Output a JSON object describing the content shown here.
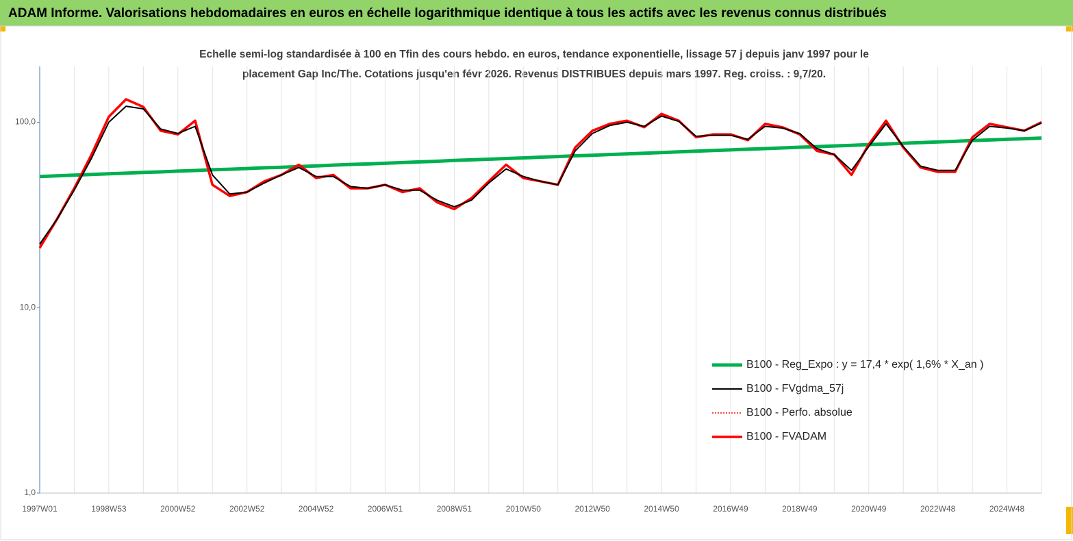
{
  "chart_data": {
    "type": "line",
    "title": "ADAM Informe. Valorisations hebdomadaires en euros en échelle logarithmique identique à tous les actifs avec les revenus connus distribués",
    "subtitle": [
      "Echelle semi-log standardisée à 100 en Tfin des cours hebdo. en euros, tendance exponentielle, lissage 57 j depuis janv 1997 pour le",
      "placement Gap Inc/The. Cotations jusqu'en févr 2026. Revenus DISTRIBUES depuis mars 1997. Reg. croiss. : 9,7/20."
    ],
    "log_scale": true,
    "legend": "lower right",
    "ylim": [
      1,
      200
    ],
    "yticks": [
      {
        "value": 1,
        "label": "1,0"
      },
      {
        "value": 10,
        "label": "10,0"
      },
      {
        "value": 100,
        "label": "100,0"
      }
    ],
    "categories": [
      "1997W01",
      null,
      null,
      null,
      "1998W53",
      null,
      null,
      null,
      "2000W52",
      null,
      null,
      null,
      "2002W52",
      null,
      null,
      null,
      "2004W52",
      null,
      null,
      null,
      "2006W51",
      null,
      null,
      null,
      "2008W51",
      null,
      null,
      null,
      "2010W50",
      null,
      null,
      null,
      "2012W50",
      null,
      null,
      null,
      "2014W50",
      null,
      null,
      null,
      "2016W49",
      null,
      null,
      null,
      "2018W49",
      null,
      null,
      null,
      "2020W49",
      null,
      null,
      null,
      "2022W48",
      null,
      null,
      null,
      "2024W48",
      null,
      null
    ],
    "series": [
      {
        "name": "B100 - Reg_Expo : y = 17,4 *  exp( 1,6% *  X_an )",
        "color": "#00b050",
        "line_style": "solid",
        "values": [
          51.0,
          51.4,
          51.8,
          52.3,
          52.7,
          53.1,
          53.6,
          54.0,
          54.5,
          54.9,
          55.4,
          55.8,
          56.3,
          56.8,
          57.2,
          57.7,
          58.2,
          58.7,
          59.2,
          59.6,
          60.1,
          60.6,
          61.1,
          61.6,
          62.2,
          62.7,
          63.2,
          63.7,
          64.2,
          64.8,
          65.3,
          65.9,
          66.4,
          67.0,
          67.5,
          68.1,
          68.6,
          69.2,
          69.8,
          70.4,
          70.9,
          71.5,
          72.1,
          72.7,
          73.3,
          73.9,
          74.5,
          75.1,
          75.8,
          76.4,
          77.0,
          77.6,
          78.3,
          78.9,
          79.6,
          80.2,
          80.9,
          81.5,
          82.2
        ]
      },
      {
        "name": "B100 - FVgdma_57j",
        "color": "#000000",
        "line_style": "solid",
        "values": [
          22,
          30,
          43,
          64,
          100,
          122,
          118,
          92,
          87,
          95,
          52,
          41,
          42,
          47,
          52,
          57,
          51,
          51,
          45,
          44,
          46,
          43,
          43,
          38,
          35,
          38,
          47,
          56,
          51,
          48,
          46,
          70,
          87,
          96,
          100,
          95,
          108,
          101,
          84,
          85,
          85,
          81,
          95,
          93,
          87,
          72,
          67,
          55,
          74,
          98,
          74,
          58,
          55,
          55,
          80,
          95,
          93,
          90,
          99
        ]
      },
      {
        "name": "B100 - Perfo. absolue",
        "color": "#ff0000",
        "line_style": "dotted",
        "values": [
          21,
          30,
          44,
          67,
          107,
          133,
          121,
          90,
          86,
          102,
          46,
          40,
          42,
          48,
          52,
          59,
          50,
          52,
          44,
          44,
          46,
          42,
          44,
          37,
          34,
          39,
          48,
          59,
          50,
          48,
          46,
          73,
          90,
          98,
          102,
          94,
          111,
          102,
          83,
          86,
          86,
          80,
          98,
          94,
          86,
          70,
          67,
          52,
          76,
          102,
          73,
          57,
          54,
          54,
          83,
          98,
          94,
          90,
          100
        ]
      },
      {
        "name": "B100 - FVADAM",
        "color": "#ff0000",
        "line_style": "solid",
        "values": [
          21,
          30,
          44,
          67,
          107,
          133,
          121,
          90,
          86,
          102,
          46,
          40,
          42,
          48,
          52,
          59,
          50,
          52,
          44,
          44,
          46,
          42,
          44,
          37,
          34,
          39,
          48,
          59,
          50,
          48,
          46,
          73,
          90,
          98,
          102,
          94,
          111,
          102,
          83,
          86,
          86,
          80,
          98,
          94,
          86,
          70,
          67,
          52,
          76,
          102,
          73,
          57,
          54,
          54,
          83,
          98,
          94,
          90,
          100
        ]
      }
    ]
  }
}
